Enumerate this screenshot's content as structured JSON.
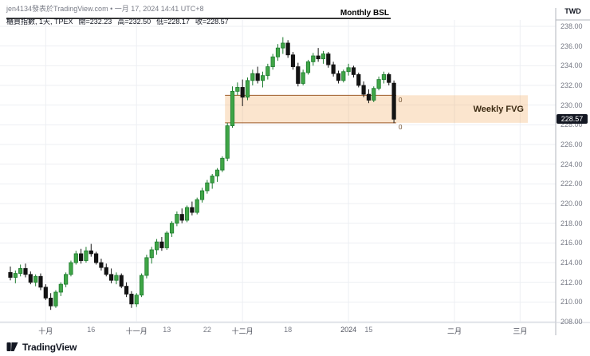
{
  "header": {
    "attribution": "jen4134發表於TradingView.com • 一月 17, 2024 14:41 UTC+8",
    "symbol_info": "櫃買指數, 1天, TPEX",
    "open": "開=232.23",
    "high": "高=232.50",
    "low": "低=228.17",
    "close": "收=228.57"
  },
  "price_axis": {
    "currency": "TWD",
    "last_price": "228.57",
    "ticks": [
      "238.00",
      "236.00",
      "234.00",
      "232.00",
      "230.00",
      "228.00",
      "226.00",
      "224.00",
      "222.00",
      "220.00",
      "218.00",
      "216.00",
      "214.00",
      "212.00",
      "210.00",
      "208.00"
    ]
  },
  "footer": {
    "brand": "TradingView"
  },
  "chart_data": {
    "type": "candlestick",
    "symbol": "櫃買指數 (TPEX)",
    "interval": "1天",
    "ohlc_last": {
      "open": 232.23,
      "high": 232.5,
      "low": 228.17,
      "close": 228.57
    },
    "y_axis": {
      "min": 208,
      "max": 238,
      "step": 2,
      "unit": "TWD",
      "grid": true
    },
    "x_ticks": [
      {
        "label": "十月",
        "i": 7,
        "major": true
      },
      {
        "label": "16",
        "i": 16,
        "major": false
      },
      {
        "label": "十一月",
        "i": 25,
        "major": true
      },
      {
        "label": "13",
        "i": 31,
        "major": false
      },
      {
        "label": "22",
        "i": 39,
        "major": false
      },
      {
        "label": "十二月",
        "i": 46,
        "major": true
      },
      {
        "label": "18",
        "i": 55,
        "major": false
      },
      {
        "label": "2024",
        "i": 67,
        "major": true
      },
      {
        "label": "15",
        "i": 71,
        "major": false
      },
      {
        "label": "二月",
        "i": 88,
        "major": true
      },
      {
        "label": "三月",
        "i": 101,
        "major": true
      }
    ],
    "candles": [
      [
        213.0,
        213.6,
        212.2,
        212.5
      ],
      [
        212.5,
        213.2,
        211.9,
        212.9
      ],
      [
        212.9,
        213.8,
        212.6,
        213.4
      ],
      [
        213.4,
        213.9,
        212.5,
        212.8
      ],
      [
        212.8,
        213.1,
        211.8,
        212.0
      ],
      [
        212.0,
        212.8,
        211.6,
        212.6
      ],
      [
        212.6,
        212.9,
        211.2,
        211.5
      ],
      [
        211.5,
        211.8,
        210.2,
        210.4
      ],
      [
        210.4,
        210.9,
        209.2,
        209.6
      ],
      [
        209.6,
        211.2,
        209.4,
        211.0
      ],
      [
        211.0,
        212.0,
        210.6,
        211.8
      ],
      [
        211.8,
        213.0,
        211.5,
        212.8
      ],
      [
        212.8,
        214.2,
        212.6,
        214.0
      ],
      [
        214.0,
        215.2,
        213.8,
        214.9
      ],
      [
        214.9,
        215.4,
        213.9,
        214.2
      ],
      [
        214.2,
        215.6,
        214.0,
        215.2
      ],
      [
        215.2,
        215.9,
        214.6,
        214.9
      ],
      [
        214.9,
        215.1,
        213.8,
        214.0
      ],
      [
        214.0,
        214.4,
        213.2,
        213.5
      ],
      [
        213.5,
        213.9,
        212.6,
        212.8
      ],
      [
        212.8,
        213.4,
        211.9,
        212.2
      ],
      [
        212.2,
        213.0,
        211.8,
        212.7
      ],
      [
        212.7,
        212.9,
        211.4,
        211.6
      ],
      [
        211.6,
        212.0,
        210.5,
        210.8
      ],
      [
        210.8,
        211.1,
        209.4,
        209.8
      ],
      [
        209.8,
        210.9,
        209.5,
        210.7
      ],
      [
        210.7,
        212.9,
        210.5,
        212.7
      ],
      [
        212.7,
        214.8,
        212.4,
        214.5
      ],
      [
        214.5,
        215.6,
        213.9,
        215.3
      ],
      [
        215.3,
        216.4,
        214.8,
        216.1
      ],
      [
        216.1,
        216.6,
        215.2,
        215.5
      ],
      [
        215.5,
        217.2,
        215.3,
        217.0
      ],
      [
        217.0,
        218.2,
        216.6,
        218.0
      ],
      [
        218.0,
        219.2,
        217.7,
        218.9
      ],
      [
        218.9,
        219.5,
        218.0,
        218.3
      ],
      [
        218.3,
        219.8,
        218.1,
        219.6
      ],
      [
        219.6,
        220.2,
        218.8,
        219.1
      ],
      [
        219.1,
        220.6,
        218.9,
        220.4
      ],
      [
        220.4,
        221.6,
        220.1,
        221.3
      ],
      [
        221.3,
        222.4,
        221.0,
        222.1
      ],
      [
        222.1,
        223.0,
        221.5,
        222.8
      ],
      [
        222.8,
        223.6,
        222.2,
        223.4
      ],
      [
        223.4,
        224.8,
        223.2,
        224.6
      ],
      [
        224.6,
        228.2,
        224.3,
        227.9
      ],
      [
        227.9,
        231.9,
        227.7,
        231.4
      ],
      [
        231.4,
        232.3,
        231.0,
        231.8
      ],
      [
        231.8,
        232.6,
        229.9,
        230.8
      ],
      [
        230.8,
        232.8,
        230.5,
        232.5
      ],
      [
        232.5,
        233.6,
        232.0,
        233.2
      ],
      [
        233.2,
        233.9,
        232.2,
        232.5
      ],
      [
        232.5,
        233.4,
        231.8,
        233.0
      ],
      [
        233.0,
        234.2,
        232.6,
        233.9
      ],
      [
        233.9,
        235.2,
        233.6,
        234.9
      ],
      [
        234.9,
        236.2,
        234.5,
        235.8
      ],
      [
        235.8,
        236.9,
        235.2,
        236.3
      ],
      [
        236.3,
        236.6,
        234.8,
        235.1
      ],
      [
        235.1,
        235.4,
        233.6,
        233.9
      ],
      [
        233.9,
        234.3,
        231.9,
        232.2
      ],
      [
        232.2,
        233.6,
        232.0,
        233.3
      ],
      [
        233.3,
        234.6,
        233.1,
        234.4
      ],
      [
        234.4,
        235.3,
        234.0,
        235.0
      ],
      [
        235.0,
        235.8,
        234.4,
        234.7
      ],
      [
        234.7,
        235.5,
        234.2,
        235.2
      ],
      [
        235.2,
        235.4,
        233.8,
        234.1
      ],
      [
        234.1,
        234.4,
        232.9,
        233.2
      ],
      [
        233.2,
        233.5,
        232.2,
        232.5
      ],
      [
        232.5,
        233.6,
        232.3,
        233.4
      ],
      [
        233.4,
        234.2,
        233.0,
        233.8
      ],
      [
        233.8,
        234.0,
        232.8,
        233.1
      ],
      [
        233.1,
        233.3,
        231.8,
        232.0
      ],
      [
        232.0,
        232.4,
        230.8,
        231.1
      ],
      [
        231.1,
        231.6,
        230.2,
        230.5
      ],
      [
        230.5,
        231.9,
        230.3,
        231.7
      ],
      [
        231.7,
        232.9,
        231.5,
        232.6
      ],
      [
        232.6,
        233.4,
        232.2,
        233.1
      ],
      [
        233.1,
        233.3,
        232.0,
        232.3
      ],
      [
        232.23,
        232.5,
        228.17,
        228.57
      ]
    ],
    "colors": {
      "up": "#3fa546",
      "up_border": "#1e7c2f",
      "down": "#131313",
      "grid": "#edeff3",
      "fvg_fill": "rgba(241,163,78,0.28)",
      "fvg_line": "#9c5a28",
      "bsl_line": "#000000",
      "last_price_bg": "#131722"
    },
    "overlays": {
      "monthly_bsl": {
        "label": "Monthly BSL",
        "price": 238.8
      },
      "weekly_fvg": {
        "label": "Weekly FVG",
        "top": 231.0,
        "bottom": 228.2,
        "start_index": 43,
        "line_end_labels": [
          "0",
          "0"
        ]
      }
    }
  }
}
